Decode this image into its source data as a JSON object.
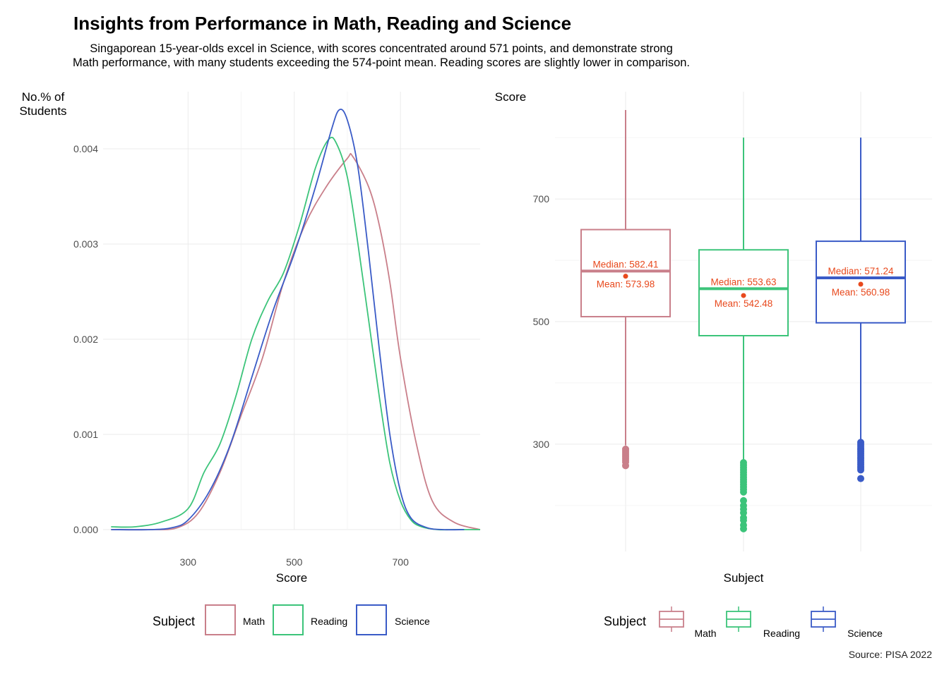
{
  "title": "Insights from Performance in Math, Reading and Science",
  "subtitle": [
    "Singaporean 15-year-olds excel in Science, with scores concentrated around 571 points, and demonstrate strong",
    "Math performance, with many students exceeding the 574-point mean. Reading scores are slightly lower in comparison."
  ],
  "source": "Source: PISA 2022",
  "colors": {
    "Math": "#c97f8a",
    "Reading": "#3cc47a",
    "Science": "#3a5bc7",
    "annotation": "#e8491d",
    "grid": "#ebebeb",
    "axis_text": "#4d4d4d"
  },
  "chart_data": [
    {
      "type": "line",
      "subtype": "density",
      "title": "",
      "xlabel": "Score",
      "ylabel": "No.% of\nStudents",
      "xlim": [
        140,
        850
      ],
      "ylim": [
        0,
        0.0044
      ],
      "x_ticks": [
        300,
        500,
        700
      ],
      "y_ticks": [
        0.0,
        0.001,
        0.002,
        0.003,
        0.004
      ],
      "y_tick_labels": [
        "0.000",
        "0.001",
        "0.002",
        "0.003",
        "0.004"
      ],
      "grid": true,
      "legend": {
        "title": "Subject",
        "position": "bottom",
        "entries": [
          "Math",
          "Reading",
          "Science"
        ]
      },
      "series": [
        {
          "name": "Math",
          "x": [
            155,
            230,
            280,
            320,
            360,
            400,
            440,
            480,
            520,
            560,
            600,
            610,
            640,
            660,
            680,
            700,
            730,
            760,
            800,
            850
          ],
          "y": [
            0,
            0,
            2e-05,
            0.00018,
            0.0006,
            0.0012,
            0.0018,
            0.0026,
            0.0032,
            0.0036,
            0.0039,
            0.00392,
            0.0036,
            0.0032,
            0.0026,
            0.0018,
            0.0009,
            0.0003,
            8e-05,
            0.0
          ]
        },
        {
          "name": "Reading",
          "x": [
            155,
            200,
            250,
            300,
            330,
            360,
            390,
            420,
            450,
            480,
            510,
            540,
            565,
            580,
            600,
            620,
            640,
            660,
            680,
            700,
            720,
            740,
            770,
            800,
            850
          ],
          "y": [
            3e-05,
            3e-05,
            8e-05,
            0.00022,
            0.0006,
            0.0009,
            0.0014,
            0.002,
            0.0024,
            0.0027,
            0.0032,
            0.0038,
            0.0041,
            0.00405,
            0.0037,
            0.003,
            0.0022,
            0.0014,
            0.0007,
            0.0003,
            0.0001,
            3e-05,
            0.0,
            0,
            0
          ]
        },
        {
          "name": "Science",
          "x": [
            155,
            230,
            270,
            300,
            340,
            380,
            420,
            460,
            500,
            540,
            570,
            585,
            600,
            620,
            640,
            660,
            680,
            700,
            720,
            750,
            780,
            820
          ],
          "y": [
            0,
            0,
            2e-05,
            0.0001,
            0.0004,
            0.0009,
            0.0016,
            0.0023,
            0.0029,
            0.0036,
            0.0042,
            0.00441,
            0.0043,
            0.0038,
            0.0029,
            0.0019,
            0.001,
            0.0004,
            0.00012,
            2e-05,
            0,
            0
          ]
        }
      ]
    },
    {
      "type": "boxplot",
      "title": "",
      "xlabel": "Subject",
      "ylabel": "Score",
      "ylim": [
        135,
        870
      ],
      "y_ticks": [
        300,
        500,
        700
      ],
      "grid": true,
      "legend": {
        "title": "Subject",
        "position": "bottom",
        "entries": [
          "Math",
          "Reading",
          "Science"
        ]
      },
      "categories": [
        "Math",
        "Reading",
        "Science"
      ],
      "boxes": [
        {
          "name": "Math",
          "q1": 508,
          "median": 582.41,
          "q3": 650,
          "whisker_low": 298,
          "whisker_high": 845,
          "mean": 573.98,
          "median_label": "Median: 582.41",
          "mean_label": "Mean: 573.98",
          "outliers": [
            292,
            289,
            286,
            283,
            280,
            277,
            274,
            271,
            265
          ]
        },
        {
          "name": "Reading",
          "q1": 477,
          "median": 553.63,
          "q3": 617,
          "whisker_low": 272,
          "whisker_high": 800,
          "mean": 542.48,
          "median_label": "Median: 553.63",
          "mean_label": "Mean: 542.48",
          "outliers": [
            270,
            266,
            262,
            258,
            254,
            250,
            246,
            242,
            238,
            234,
            230,
            226,
            222,
            208,
            200,
            194,
            188,
            180,
            176,
            168,
            162
          ]
        },
        {
          "name": "Science",
          "q1": 498,
          "median": 571.24,
          "q3": 631,
          "whisker_low": 305,
          "whisker_high": 800,
          "mean": 560.98,
          "median_label": "Median: 571.24",
          "mean_label": "Mean: 560.98",
          "outliers": [
            303,
            300,
            297,
            294,
            291,
            288,
            285,
            282,
            279,
            276,
            273,
            270,
            267,
            264,
            261,
            258,
            244
          ]
        }
      ]
    }
  ]
}
